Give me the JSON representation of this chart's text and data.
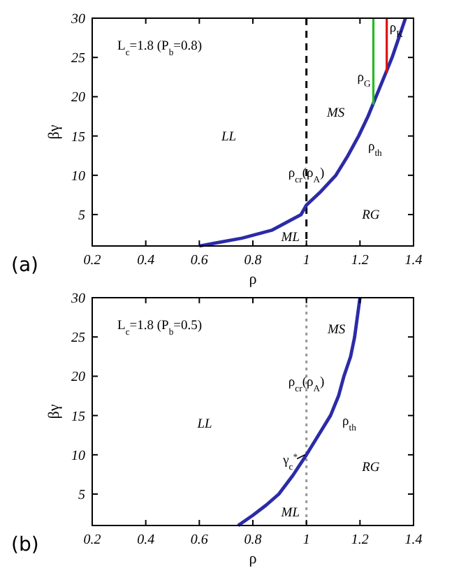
{
  "chart_data": [
    {
      "type": "line",
      "xlabel": "ρ",
      "ylabel": "βγ",
      "xlim": [
        0.2,
        1.4
      ],
      "ylim": [
        1,
        30
      ],
      "xticks": [
        0.2,
        0.4,
        0.6,
        0.8,
        1,
        1.2,
        1.4
      ],
      "yticks": [
        5,
        10,
        15,
        20,
        25,
        30
      ],
      "grid": false,
      "series": [
        {
          "color": "#2b2ba8",
          "x": [
            0.6,
            0.68,
            0.76,
            0.87,
            0.98,
            1.0,
            1.05,
            1.11,
            1.155,
            1.195,
            1.23,
            1.26,
            1.29,
            1.32,
            1.345,
            1.37
          ],
          "values": [
            1,
            1.5,
            2,
            3,
            5,
            6.2,
            7.8,
            10,
            12.5,
            15,
            17.5,
            20,
            22.5,
            25,
            27.5,
            30
          ]
        },
        {
          "color": "#22bb22",
          "x": [
            1.25,
            1.25
          ],
          "values": [
            19,
            30
          ]
        },
        {
          "color": "#dd1111",
          "x": [
            1.3,
            1.3
          ],
          "values": [
            23,
            30
          ]
        }
      ],
      "ref_lines": [
        {
          "axis": "x",
          "value": 1,
          "color": "#000000",
          "line_style": "dashed"
        }
      ],
      "annotations": [
        "L$_{c}$=1.8 (P$_{b}$=0.8)",
        "LL",
        "MS",
        "ML",
        "RG",
        "ρ$_{th}$",
        "(a)",
        {
          "text": "ρ$_{cr}$(ρ$_{A}$)",
          "x": 1.0,
          "y": 9.8
        },
        {
          "text": "ρ$_{G}$",
          "x": 1.25,
          "y": 22
        },
        {
          "text": "ρ$_{K}$",
          "x": 1.3,
          "y": 28.3
        }
      ]
    },
    {
      "type": "line",
      "xlabel": "ρ",
      "ylabel": "βγ",
      "xlim": [
        0.2,
        1.4
      ],
      "ylim": [
        1,
        30
      ],
      "xticks": [
        0.2,
        0.4,
        0.6,
        0.8,
        1,
        1.2,
        1.4
      ],
      "yticks": [
        5,
        10,
        15,
        20,
        25,
        30
      ],
      "grid": false,
      "series": [
        {
          "color": "#2b2ba8",
          "x": [
            0.745,
            0.8,
            0.85,
            0.897,
            0.95,
            1.0,
            1.045,
            1.09,
            1.12,
            1.14,
            1.165,
            1.18,
            1.2
          ],
          "values": [
            1,
            2.3,
            3.6,
            5,
            7.4,
            10,
            12.5,
            15,
            17.5,
            20,
            22.5,
            25,
            30
          ]
        }
      ],
      "ref_lines": [
        {
          "axis": "x",
          "value": 1,
          "color": "#999999",
          "line_style": "dotted"
        }
      ],
      "annotations": [
        "L$_{c}$=1.8 (P$_{b}$=0.5)",
        "LL",
        "MS",
        "ML",
        "RG",
        "ρ$_{th}$",
        "(b)",
        {
          "text": "ρ$_{cr}$(ρ$_{A}$)",
          "x": 1.0,
          "y": 18.8
        },
        {
          "text": "γ$_{c}$$^{*}$",
          "x": 0.94,
          "y": 8.8
        }
      ]
    }
  ]
}
